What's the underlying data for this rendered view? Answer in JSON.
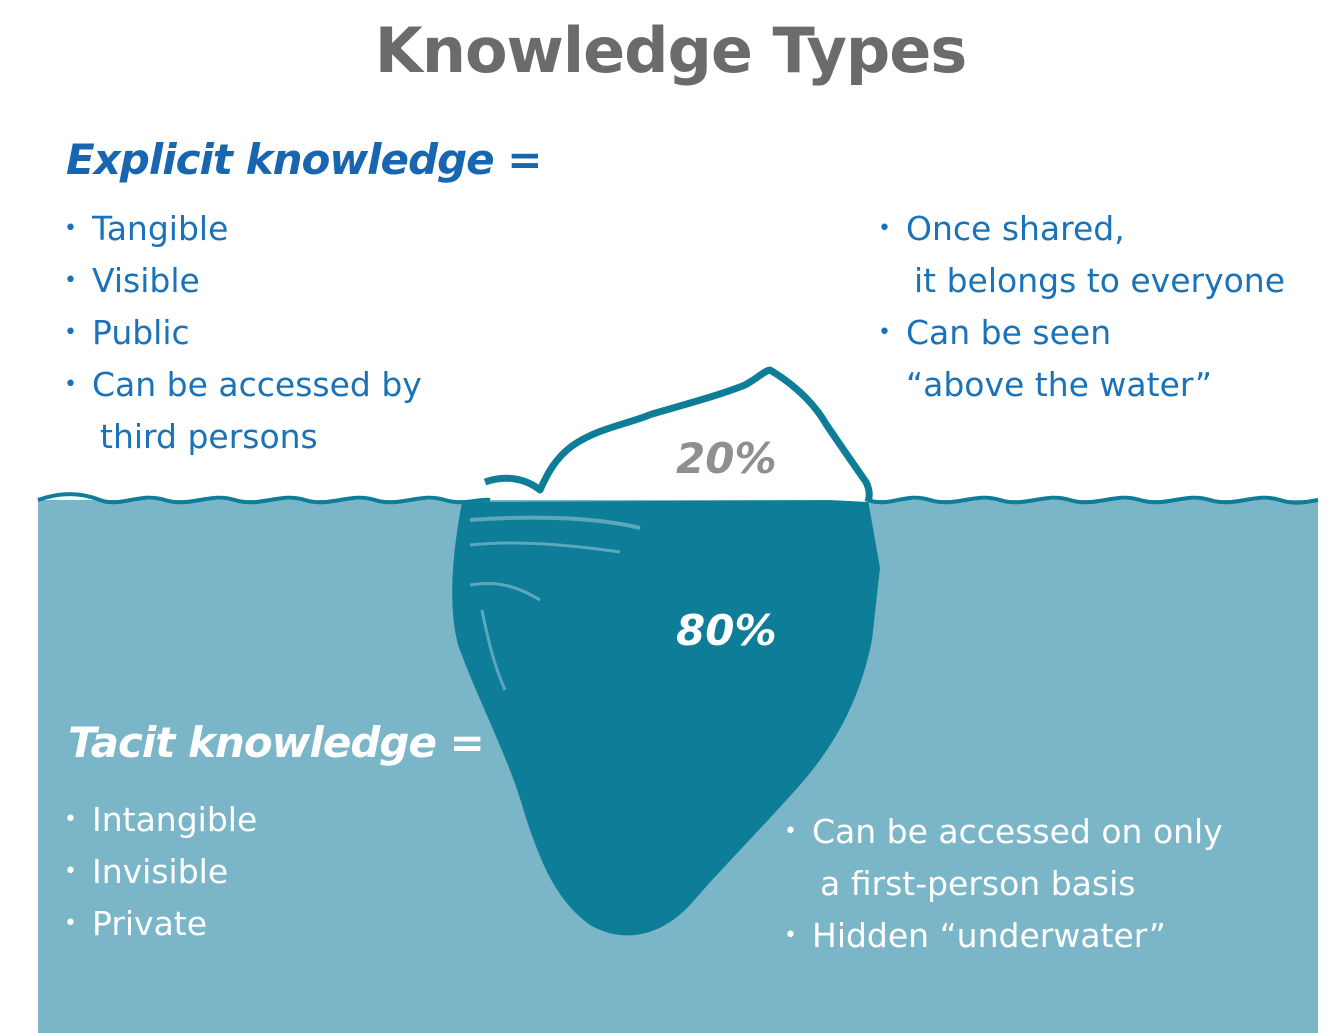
{
  "title": "Knowledge Types",
  "explicit": {
    "heading": "Explicit knowledge =",
    "left_items": [
      [
        "Tangible"
      ],
      [
        "Visible"
      ],
      [
        "Public"
      ],
      [
        "Can be accessed by",
        "third persons"
      ]
    ],
    "right_items": [
      [
        "Once shared,",
        "it belongs to everyone"
      ],
      [
        "Can be seen",
        "“above the water”"
      ]
    ]
  },
  "tacit": {
    "heading": "Tacit knowledge =",
    "left_items": [
      [
        "Intangible"
      ],
      [
        "Invisible"
      ],
      [
        "Private"
      ]
    ],
    "right_items": [
      [
        "Can be accessed on only",
        "a first-person basis"
      ],
      [
        "Hidden “underwater”"
      ]
    ]
  },
  "iceberg": {
    "above_percent": "20%",
    "below_percent": "80%"
  },
  "colors": {
    "title_gray": "#6b6b6b",
    "explicit_blue": "#1a73b8",
    "water": "#7ab6c7",
    "iceberg_teal": "#0e7d98",
    "tacit_white": "#ffffff"
  }
}
